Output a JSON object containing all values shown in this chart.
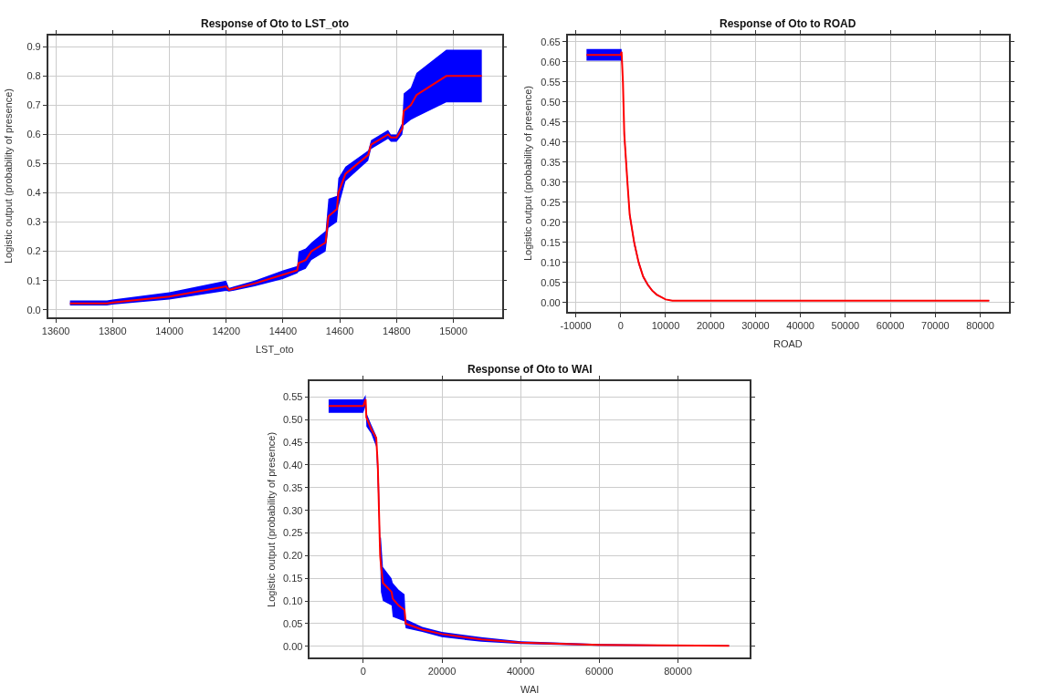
{
  "chart_data": [
    {
      "type": "line",
      "title": "Response of Oto to LST_oto",
      "xlabel": "LST_oto",
      "ylabel": "Logistic output (probability of presence)",
      "xlim": [
        13573,
        15171
      ],
      "xticks": [
        13600,
        13800,
        14000,
        14200,
        14400,
        14600,
        14800,
        15000
      ],
      "ylim": [
        -0.026,
        0.939
      ],
      "yticks": [
        {
          "value": 0,
          "label": "0.0"
        },
        0.1,
        0.2,
        0.3,
        0.4,
        0.5,
        0.6,
        0.7,
        0.8,
        0.9
      ],
      "grid": true,
      "marker": "none",
      "line_style": "solid",
      "series": [
        {
          "color": "#ff0000",
          "x": [
            13650,
            13780,
            13800,
            14000,
            14200,
            14210,
            14300,
            14400,
            14450,
            14455,
            14480,
            14500,
            14550,
            14560,
            14590,
            14595,
            14620,
            14700,
            14710,
            14770,
            14780,
            14800,
            14820,
            14825,
            14850,
            14870,
            14975,
            15100
          ],
          "values": [
            0.022,
            0.022,
            0.025,
            0.045,
            0.08,
            0.068,
            0.09,
            0.12,
            0.135,
            0.16,
            0.17,
            0.2,
            0.23,
            0.32,
            0.345,
            0.4,
            0.465,
            0.53,
            0.565,
            0.6,
            0.59,
            0.59,
            0.62,
            0.68,
            0.7,
            0.735,
            0.8,
            0.8
          ],
          "lower": [
            0.015,
            0.015,
            0.018,
            0.035,
            0.065,
            0.062,
            0.08,
            0.105,
            0.125,
            0.13,
            0.14,
            0.17,
            0.2,
            0.28,
            0.3,
            0.35,
            0.44,
            0.51,
            0.55,
            0.585,
            0.575,
            0.575,
            0.6,
            0.63,
            0.65,
            0.66,
            0.71,
            0.71
          ],
          "upper": [
            0.032,
            0.032,
            0.035,
            0.06,
            0.1,
            0.075,
            0.1,
            0.135,
            0.15,
            0.2,
            0.21,
            0.23,
            0.27,
            0.38,
            0.39,
            0.45,
            0.49,
            0.545,
            0.58,
            0.615,
            0.6,
            0.6,
            0.64,
            0.74,
            0.76,
            0.81,
            0.89,
            0.89
          ]
        }
      ]
    },
    {
      "type": "line",
      "title": "Response of Oto to ROAD",
      "xlabel": "ROAD",
      "ylabel": "Logistic output (probability of presence)",
      "xlim": [
        -11800,
        86400
      ],
      "xticks": [
        -10000,
        0,
        10000,
        20000,
        30000,
        40000,
        50000,
        60000,
        70000,
        80000
      ],
      "ylim": [
        -0.023,
        0.666
      ],
      "yticks": [
        {
          "value": 0,
          "label": "0.00"
        },
        0.05,
        {
          "value": 0.1,
          "label": "0.10"
        },
        0.15,
        {
          "value": 0.2,
          "label": "0.20"
        },
        0.25,
        {
          "value": 0.3,
          "label": "0.30"
        },
        0.35,
        {
          "value": 0.4,
          "label": "0.40"
        },
        0.45,
        {
          "value": 0.5,
          "label": "0.50"
        },
        0.55,
        {
          "value": 0.6,
          "label": "0.60"
        },
        0.65
      ],
      "grid": true,
      "marker": "none",
      "line_style": "solid",
      "series": [
        {
          "color": "#ff0000",
          "x": [
            -7600,
            0,
            200,
            500,
            800,
            1500,
            2000,
            3000,
            4000,
            5000,
            6000,
            7000,
            8000,
            10000,
            11500,
            82000
          ],
          "values": [
            0.617,
            0.617,
            0.625,
            0.55,
            0.42,
            0.3,
            0.22,
            0.15,
            0.1,
            0.065,
            0.045,
            0.03,
            0.02,
            0.008,
            0.005,
            0.005
          ],
          "lower": [
            0.603,
            0.603,
            0.6,
            0.54,
            0.4,
            0.285,
            0.21,
            0.142,
            0.094,
            0.061,
            0.042,
            0.028,
            0.018,
            0.007,
            0.004,
            0.004
          ],
          "upper": [
            0.632,
            0.632,
            0.632,
            0.56,
            0.44,
            0.315,
            0.23,
            0.158,
            0.106,
            0.069,
            0.048,
            0.032,
            0.022,
            0.009,
            0.006,
            0.006
          ]
        }
      ]
    },
    {
      "type": "line",
      "title": "Response of Oto to WAI",
      "xlabel": "WAI",
      "ylabel": "Logistic output (probability of presence)",
      "xlim": [
        -13560,
        98250
      ],
      "xticks": [
        0,
        20000,
        40000,
        60000,
        80000
      ],
      "ylim": [
        -0.025,
        0.585
      ],
      "yticks": [
        {
          "value": 0,
          "label": "0.00"
        },
        0.05,
        {
          "value": 0.1,
          "label": "0.10"
        },
        0.15,
        {
          "value": 0.2,
          "label": "0.20"
        },
        0.25,
        {
          "value": 0.3,
          "label": "0.30"
        },
        0.35,
        {
          "value": 0.4,
          "label": "0.40"
        },
        0.45,
        {
          "value": 0.5,
          "label": "0.50"
        },
        0.55
      ],
      "grid": true,
      "marker": "none",
      "line_style": "solid",
      "series": [
        {
          "color": "#ff0000",
          "x": [
            -8800,
            0,
            600,
            800,
            2000,
            3300,
            3700,
            4000,
            4300,
            4500,
            5000,
            7200,
            7500,
            9000,
            10500,
            10800,
            15000,
            20000,
            30000,
            40000,
            60000,
            93000
          ],
          "values": [
            0.53,
            0.53,
            0.545,
            0.505,
            0.48,
            0.46,
            0.4,
            0.3,
            0.2,
            0.18,
            0.14,
            0.12,
            0.105,
            0.09,
            0.08,
            0.05,
            0.037,
            0.027,
            0.015,
            0.008,
            0.003,
            0.001
          ],
          "lower": [
            0.515,
            0.515,
            0.53,
            0.485,
            0.47,
            0.44,
            0.35,
            0.275,
            0.195,
            0.12,
            0.1,
            0.09,
            0.065,
            0.06,
            0.055,
            0.04,
            0.032,
            0.02,
            0.01,
            0.005,
            0.001,
            0
          ],
          "upper": [
            0.545,
            0.545,
            0.555,
            0.515,
            0.49,
            0.465,
            0.41,
            0.36,
            0.24,
            0.24,
            0.175,
            0.15,
            0.14,
            0.125,
            0.115,
            0.06,
            0.043,
            0.032,
            0.02,
            0.011,
            0.005,
            0.002
          ]
        }
      ]
    }
  ]
}
